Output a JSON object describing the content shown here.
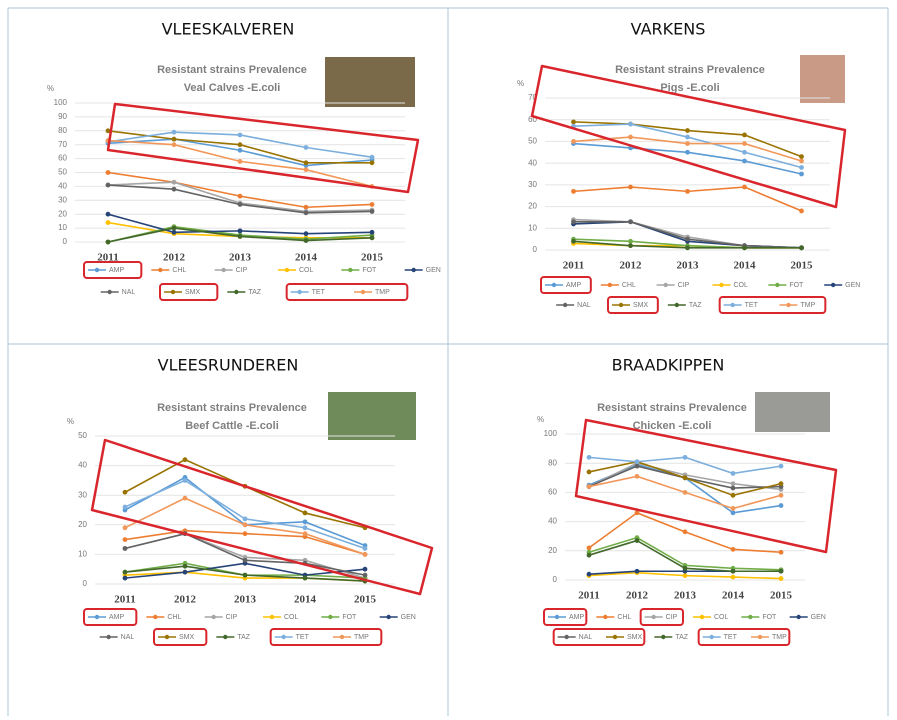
{
  "panel_titles": [
    "VLEESKALVEREN",
    "VARKENS",
    "VLEESRUNDEREN",
    "BRAADKIPPEN"
  ],
  "chart_data": [
    {
      "type": "line",
      "title": "Resistant strains Prevalence",
      "subtitle": "Veal Calves -E.coli",
      "y_label": "%",
      "categories": [
        "2011",
        "2012",
        "2013",
        "2014",
        "2015"
      ],
      "ylim": [
        0,
        100
      ],
      "yticks": [
        0,
        10,
        20,
        30,
        40,
        50,
        60,
        70,
        80,
        90,
        100
      ],
      "grid": true,
      "series": [
        {
          "name": "AMP",
          "color": "#5b9bd5",
          "values": [
            71,
            74,
            66,
            55,
            59
          ]
        },
        {
          "name": "CHL",
          "color": "#ed7d31",
          "values": [
            50,
            43,
            33,
            25,
            27
          ]
        },
        {
          "name": "CIP",
          "color": "#a5a5a5",
          "values": [
            41,
            43,
            28,
            22,
            23
          ]
        },
        {
          "name": "COL",
          "color": "#ffc000",
          "values": [
            14,
            6,
            4,
            3,
            3
          ]
        },
        {
          "name": "FOT",
          "color": "#70ad47",
          "values": [
            0,
            11,
            5,
            2,
            5
          ]
        },
        {
          "name": "GEN",
          "color": "#264478",
          "values": [
            20,
            7,
            8,
            6,
            7
          ]
        },
        {
          "name": "NAL",
          "color": "#636363",
          "values": [
            41,
            38,
            27,
            21,
            22
          ]
        },
        {
          "name": "SMX",
          "color": "#997300",
          "values": [
            80,
            74,
            70,
            57,
            57
          ]
        },
        {
          "name": "TAZ",
          "color": "#43682b",
          "values": [
            0,
            10,
            4,
            1,
            3
          ]
        },
        {
          "name": "TET",
          "color": "#7cafdd",
          "values": [
            72,
            79,
            77,
            68,
            61
          ]
        },
        {
          "name": "TMP",
          "color": "#f1975a",
          "values": [
            73,
            70,
            58,
            52,
            40
          ]
        }
      ]
    },
    {
      "type": "line",
      "title": "Resistant strains Prevalence",
      "subtitle": "Pigs -E.coli",
      "y_label": "%",
      "categories": [
        "2011",
        "2012",
        "2013",
        "2014",
        "2015"
      ],
      "ylim": [
        0,
        70
      ],
      "yticks": [
        0,
        10,
        20,
        30,
        40,
        50,
        60,
        70
      ],
      "grid": true,
      "series": [
        {
          "name": "AMP",
          "color": "#5b9bd5",
          "values": [
            49,
            47,
            45,
            41,
            35
          ]
        },
        {
          "name": "CHL",
          "color": "#ed7d31",
          "values": [
            27,
            29,
            27,
            29,
            18
          ]
        },
        {
          "name": "CIP",
          "color": "#a5a5a5",
          "values": [
            14,
            13,
            6,
            2,
            1
          ]
        },
        {
          "name": "COL",
          "color": "#ffc000",
          "values": [
            3,
            2,
            2,
            1,
            1
          ]
        },
        {
          "name": "FOT",
          "color": "#70ad47",
          "values": [
            5,
            4,
            2,
            1,
            1
          ]
        },
        {
          "name": "GEN",
          "color": "#264478",
          "values": [
            12,
            13,
            4,
            2,
            1
          ]
        },
        {
          "name": "NAL",
          "color": "#636363",
          "values": [
            13,
            13,
            5,
            2,
            1
          ]
        },
        {
          "name": "SMX",
          "color": "#997300",
          "values": [
            59,
            58,
            55,
            53,
            43
          ]
        },
        {
          "name": "TAZ",
          "color": "#43682b",
          "values": [
            4,
            2,
            1,
            1,
            1
          ]
        },
        {
          "name": "TET",
          "color": "#7cafdd",
          "values": [
            57,
            58,
            52,
            45,
            38
          ]
        },
        {
          "name": "TMP",
          "color": "#f1975a",
          "values": [
            50,
            52,
            49,
            49,
            41
          ]
        }
      ]
    },
    {
      "type": "line",
      "title": "Resistant strains Prevalence",
      "subtitle": "Beef Cattle -E.coli",
      "y_label": "%",
      "categories": [
        "2011",
        "2012",
        "2013",
        "2014",
        "2015"
      ],
      "ylim": [
        0,
        50
      ],
      "yticks": [
        0,
        10,
        20,
        30,
        40,
        50
      ],
      "grid": true,
      "series": [
        {
          "name": "AMP",
          "color": "#5b9bd5",
          "values": [
            25,
            36,
            20,
            21,
            13
          ]
        },
        {
          "name": "CHL",
          "color": "#ed7d31",
          "values": [
            15,
            18,
            17,
            16,
            10
          ]
        },
        {
          "name": "CIP",
          "color": "#a5a5a5",
          "values": [
            12,
            17,
            9,
            8,
            2
          ]
        },
        {
          "name": "COL",
          "color": "#ffc000",
          "values": [
            3,
            4,
            2,
            2,
            1
          ]
        },
        {
          "name": "FOT",
          "color": "#70ad47",
          "values": [
            4,
            7,
            3,
            3,
            2
          ]
        },
        {
          "name": "GEN",
          "color": "#264478",
          "values": [
            2,
            4,
            7,
            3,
            5
          ]
        },
        {
          "name": "NAL",
          "color": "#636363",
          "values": [
            12,
            17,
            8,
            7,
            3
          ]
        },
        {
          "name": "SMX",
          "color": "#997300",
          "values": [
            31,
            42,
            33,
            24,
            19
          ]
        },
        {
          "name": "TAZ",
          "color": "#43682b",
          "values": [
            4,
            6,
            3,
            2,
            1
          ]
        },
        {
          "name": "TET",
          "color": "#7cafdd",
          "values": [
            26,
            35,
            22,
            19,
            12
          ]
        },
        {
          "name": "TMP",
          "color": "#f1975a",
          "values": [
            19,
            29,
            20,
            17,
            10
          ]
        }
      ]
    },
    {
      "type": "line",
      "title": "Resistant strains Prevalence",
      "subtitle": "Chicken -E.coli",
      "y_label": "%",
      "categories": [
        "2011",
        "2012",
        "2013",
        "2014",
        "2015"
      ],
      "ylim": [
        0,
        100
      ],
      "yticks": [
        0,
        20,
        40,
        60,
        80,
        100
      ],
      "grid": true,
      "series": [
        {
          "name": "AMP",
          "color": "#5b9bd5",
          "values": [
            65,
            79,
            70,
            46,
            51
          ]
        },
        {
          "name": "CHL",
          "color": "#ed7d31",
          "values": [
            22,
            46,
            33,
            21,
            19
          ]
        },
        {
          "name": "CIP",
          "color": "#a5a5a5",
          "values": [
            64,
            80,
            72,
            66,
            62
          ]
        },
        {
          "name": "COL",
          "color": "#ffc000",
          "values": [
            3,
            5,
            3,
            2,
            1
          ]
        },
        {
          "name": "FOT",
          "color": "#70ad47",
          "values": [
            19,
            29,
            10,
            8,
            7
          ]
        },
        {
          "name": "GEN",
          "color": "#264478",
          "values": [
            4,
            6,
            6,
            6,
            6
          ]
        },
        {
          "name": "NAL",
          "color": "#636363",
          "values": [
            64,
            78,
            70,
            63,
            64
          ]
        },
        {
          "name": "SMX",
          "color": "#997300",
          "values": [
            74,
            81,
            70,
            58,
            66
          ]
        },
        {
          "name": "TAZ",
          "color": "#43682b",
          "values": [
            17,
            27,
            8,
            6,
            6
          ]
        },
        {
          "name": "TET",
          "color": "#7cafdd",
          "values": [
            84,
            81,
            84,
            73,
            78
          ]
        },
        {
          "name": "TMP",
          "color": "#f1975a",
          "values": [
            64,
            71,
            60,
            49,
            58
          ]
        }
      ]
    }
  ]
}
